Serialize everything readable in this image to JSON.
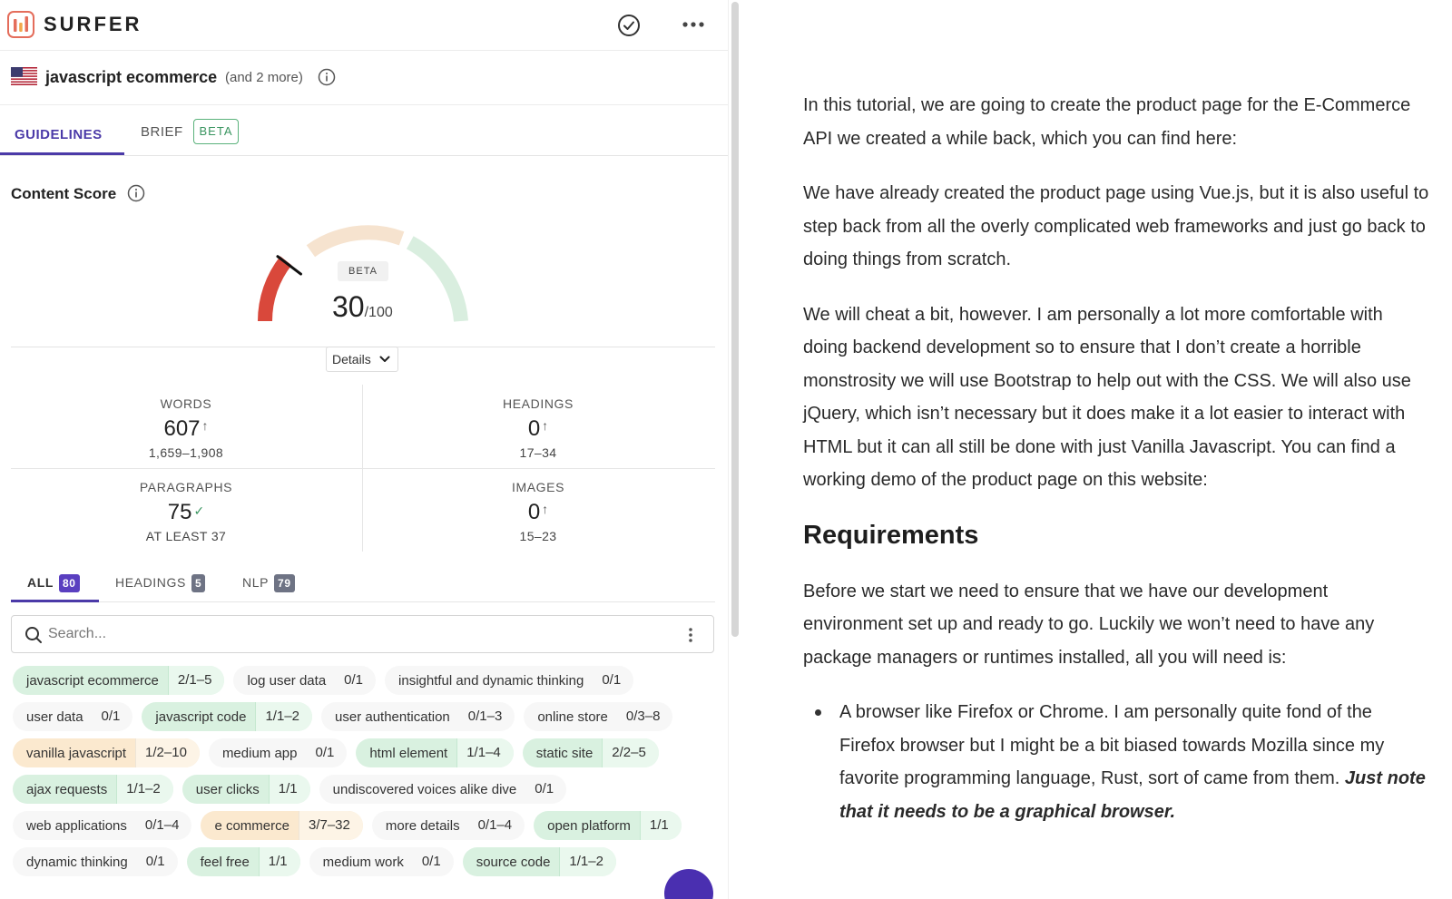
{
  "app": {
    "name": "SURFER"
  },
  "keyword": {
    "main": "javascript ecommerce",
    "more": "(and 2 more)"
  },
  "tabs": {
    "guidelines": "GUIDELINES",
    "brief": "BRIEF",
    "brief_badge": "BETA"
  },
  "content_score": {
    "title": "Content Score",
    "badge": "BETA",
    "score": "30",
    "max": "/100",
    "score_fraction": 0.3,
    "details_label": "Details"
  },
  "stats": {
    "words": {
      "label": "WORDS",
      "value": "607",
      "range": "1,659–1,908"
    },
    "headings": {
      "label": "HEADINGS",
      "value": "0",
      "range": "17–34"
    },
    "paragraphs": {
      "label": "PARAGRAPHS",
      "value": "75",
      "range": "AT LEAST 37"
    },
    "images": {
      "label": "IMAGES",
      "value": "0",
      "range": "15–23"
    }
  },
  "filter_tabs": {
    "all": {
      "label": "ALL",
      "count": "80"
    },
    "headings": {
      "label": "HEADINGS",
      "count": "5"
    },
    "nlp": {
      "label": "NLP",
      "count": "79"
    }
  },
  "search": {
    "placeholder": "Search..."
  },
  "terms": [
    [
      {
        "term": "javascript ecommerce",
        "count": "2/1–5",
        "status": "good"
      },
      {
        "term": "log user data",
        "count": "0/1",
        "status": "none"
      },
      {
        "term": "insightful and dynamic thinking",
        "count": "0/1",
        "status": "none"
      }
    ],
    [
      {
        "term": "user data",
        "count": "0/1",
        "status": "none"
      },
      {
        "term": "javascript code",
        "count": "1/1–2",
        "status": "good"
      },
      {
        "term": "user authentication",
        "count": "0/1–3",
        "status": "none"
      },
      {
        "term": "online store",
        "count": "0/3–8",
        "status": "none"
      }
    ],
    [
      {
        "term": "vanilla javascript",
        "count": "1/2–10",
        "status": "part"
      },
      {
        "term": "medium app",
        "count": "0/1",
        "status": "none"
      },
      {
        "term": "html element",
        "count": "1/1–4",
        "status": "good"
      },
      {
        "term": "static site",
        "count": "2/2–5",
        "status": "good"
      }
    ],
    [
      {
        "term": "ajax requests",
        "count": "1/1–2",
        "status": "good"
      },
      {
        "term": "user clicks",
        "count": "1/1",
        "status": "good"
      },
      {
        "term": "undiscovered voices alike dive",
        "count": "0/1",
        "status": "none"
      }
    ],
    [
      {
        "term": "web applications",
        "count": "0/1–4",
        "status": "none"
      },
      {
        "term": "e commerce",
        "count": "3/7–32",
        "status": "part"
      },
      {
        "term": "more details",
        "count": "0/1–4",
        "status": "none"
      },
      {
        "term": "open platform",
        "count": "1/1",
        "status": "good"
      }
    ],
    [
      {
        "term": "dynamic thinking",
        "count": "0/1",
        "status": "none"
      },
      {
        "term": "feel free",
        "count": "1/1",
        "status": "good"
      },
      {
        "term": "medium work",
        "count": "0/1",
        "status": "none"
      },
      {
        "term": "source code",
        "count": "1/1–2",
        "status": "good"
      }
    ]
  ],
  "article": {
    "p1": "In this tutorial, we are going to create the product page for the E-Commerce API we created a while back, which you can find here:",
    "p2": "We have already created the product page using Vue.js, but it is also useful to step back from all the overly complicated web frameworks and just go back to doing things from scratch.",
    "p3": "We will cheat a bit, however. I am personally a lot more comfortable with doing backend development so to ensure that I don’t create a horrible monstrosity we will use Bootstrap to help out with the CSS. We will also use jQuery, which isn’t necessary but it does make it a lot easier to interact with HTML but it can all still be done with just Vanilla Javascript. You can find a working demo of the product page on this website:",
    "h2": "Requirements",
    "p4": "Before we start we need to ensure that we have our development environment set up and ready to go. Luckily we won’t need to have any package managers or runtimes installed, all you will need is:",
    "li1": "A browser like Firefox or Chrome. I am personally quite fond of the Firefox browser but I might be a bit biased towards Mozilla since my favorite programming language, Rust, sort of came from them.",
    "li1_em": "Just note that it needs to be a graphical browser."
  },
  "colors": {
    "accent": "#4b3aa8",
    "good": "#d9f1e0",
    "partial": "#fbe9cf",
    "score_red": "#d9483b"
  }
}
